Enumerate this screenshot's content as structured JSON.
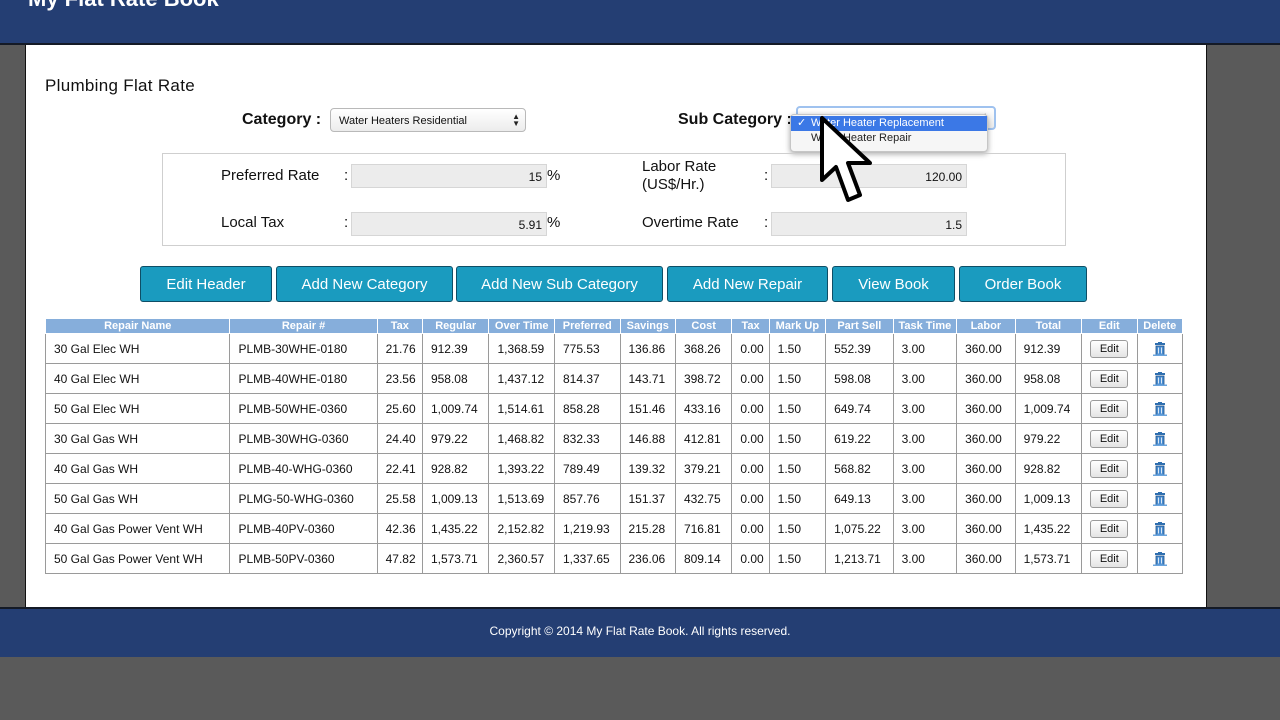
{
  "app": {
    "brand": "My Flat Rate Book"
  },
  "page": {
    "title": "Plumbing Flat Rate"
  },
  "filters": {
    "category_label": "Category :",
    "category_value": "Water Heaters Residential",
    "subcategory_label": "Sub Category :",
    "subcategory_options": [
      "Water Heater Replacement",
      "Water Heater Repair"
    ],
    "subcategory_selected_check": "✓"
  },
  "rates": {
    "preferred_label": "Preferred Rate",
    "preferred_value": "15",
    "local_tax_label": "Local Tax",
    "local_tax_value": "5.91",
    "labor_label_line1": "Labor Rate",
    "labor_label_line2": "(US$/Hr.)",
    "labor_value": "120.00",
    "overtime_label": "Overtime Rate",
    "overtime_value": "1.5",
    "colon": ":",
    "percent": "%"
  },
  "toolbar": {
    "edit_header": "Edit Header",
    "add_category": "Add New Category",
    "add_subcategory": "Add New Sub Category",
    "add_repair": "Add New Repair",
    "view_book": "View Book",
    "order_book": "Order Book"
  },
  "table": {
    "headers": [
      "Repair Name",
      "Repair #",
      "Tax",
      "Regular",
      "Over Time",
      "Preferred",
      "Savings",
      "Cost",
      "Tax",
      "Mark Up",
      "Part Sell",
      "Task Time",
      "Labor",
      "Total",
      "Edit",
      "Delete"
    ],
    "edit_label": "Edit",
    "rows": [
      [
        "30 Gal Elec WH",
        "PLMB-30WHE-0180",
        "21.76",
        "912.39",
        "1,368.59",
        "775.53",
        "136.86",
        "368.26",
        "0.00",
        "1.50",
        "552.39",
        "3.00",
        "360.00",
        "912.39"
      ],
      [
        "40 Gal Elec WH",
        "PLMB-40WHE-0180",
        "23.56",
        "958.08",
        "1,437.12",
        "814.37",
        "143.71",
        "398.72",
        "0.00",
        "1.50",
        "598.08",
        "3.00",
        "360.00",
        "958.08"
      ],
      [
        "50 Gal Elec WH",
        "PLMB-50WHE-0360",
        "25.60",
        "1,009.74",
        "1,514.61",
        "858.28",
        "151.46",
        "433.16",
        "0.00",
        "1.50",
        "649.74",
        "3.00",
        "360.00",
        "1,009.74"
      ],
      [
        "30 Gal Gas WH",
        "PLMB-30WHG-0360",
        "24.40",
        "979.22",
        "1,468.82",
        "832.33",
        "146.88",
        "412.81",
        "0.00",
        "1.50",
        "619.22",
        "3.00",
        "360.00",
        "979.22"
      ],
      [
        "40 Gal Gas WH",
        "PLMB-40-WHG-0360",
        "22.41",
        "928.82",
        "1,393.22",
        "789.49",
        "139.32",
        "379.21",
        "0.00",
        "1.50",
        "568.82",
        "3.00",
        "360.00",
        "928.82"
      ],
      [
        "50 Gal Gas WH",
        "PLMG-50-WHG-0360",
        "25.58",
        "1,009.13",
        "1,513.69",
        "857.76",
        "151.37",
        "432.75",
        "0.00",
        "1.50",
        "649.13",
        "3.00",
        "360.00",
        "1,009.13"
      ],
      [
        "40 Gal Gas Power Vent WH",
        "PLMB-40PV-0360",
        "42.36",
        "1,435.22",
        "2,152.82",
        "1,219.93",
        "215.28",
        "716.81",
        "0.00",
        "1.50",
        "1,075.22",
        "3.00",
        "360.00",
        "1,435.22"
      ],
      [
        "50 Gal Gas Power Vent WH",
        "PLMB-50PV-0360",
        "47.82",
        "1,573.71",
        "2,360.57",
        "1,337.65",
        "236.06",
        "809.14",
        "0.00",
        "1.50",
        "1,213.71",
        "3.00",
        "360.00",
        "1,573.71"
      ]
    ]
  },
  "footer": {
    "copyright": "Copyright © 2014 My Flat Rate Book. All rights reserved."
  },
  "icons": {
    "delete": "trash-icon",
    "cursor": "mouse-pointer-icon"
  },
  "colors": {
    "header_bar": "#243e73",
    "button": "#1a9bbf",
    "table_header": "#86aedb",
    "selected_option": "#3b78e6"
  }
}
